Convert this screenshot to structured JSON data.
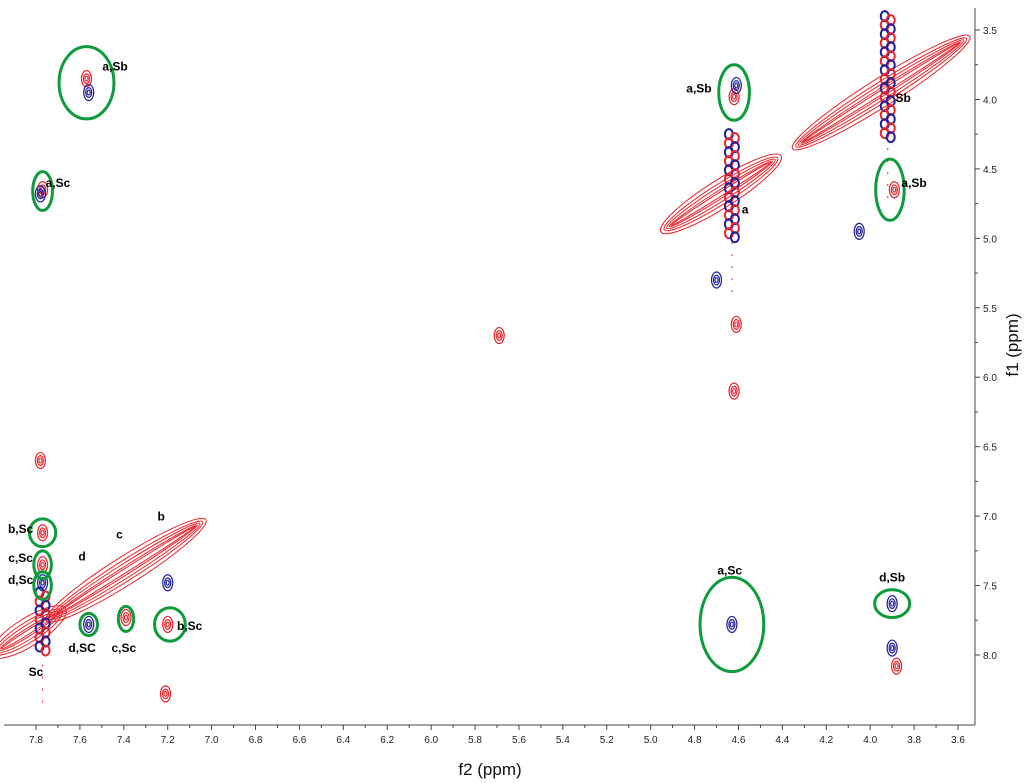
{
  "chart_data": {
    "type": "scatter",
    "title": "",
    "xlabel": "f2 (ppm)",
    "ylabel": "f1 (ppm)",
    "xlim": [
      7.95,
      3.58
    ],
    "ylim": [
      3.4,
      8.5
    ],
    "x_reversed": true,
    "y_reversed": true,
    "x_ticks": [
      "7.8",
      "7.6",
      "7.4",
      "7.2",
      "7.0",
      "6.8",
      "6.6",
      "6.4",
      "6.2",
      "6.0",
      "5.8",
      "5.6",
      "5.4",
      "5.2",
      "5.0",
      "4.8",
      "4.6",
      "4.4",
      "4.2",
      "4.0",
      "3.8",
      "3.6"
    ],
    "y_ticks": [
      "3.5",
      "4.0",
      "4.5",
      "5.0",
      "5.5",
      "6.0",
      "6.5",
      "7.0",
      "7.5",
      "8.0"
    ],
    "colors": {
      "positive": "#e8242c",
      "negative": "#1f1f9a",
      "highlight": "#0f9a3c"
    },
    "diagonal_segments": [
      {
        "x1": 7.95,
        "y1": 7.95,
        "x2": 7.72,
        "y2": 7.72
      },
      {
        "x1": 7.7,
        "y1": 7.7,
        "x2": 7.08,
        "y2": 7.08
      },
      {
        "x1": 4.9,
        "y1": 4.9,
        "x2": 4.46,
        "y2": 4.46
      },
      {
        "x1": 4.3,
        "y1": 4.3,
        "x2": 3.6,
        "y2": 3.6
      }
    ],
    "stripes": [
      {
        "x": 4.63,
        "y_from": 4.25,
        "y_to": 5.0
      },
      {
        "x": 3.92,
        "y_from": 3.4,
        "y_to": 4.3
      },
      {
        "x": 7.77,
        "y_from": 7.55,
        "y_to": 7.95
      }
    ],
    "cross_peaks": [
      {
        "x": 7.57,
        "y": 3.85,
        "sign": "pos"
      },
      {
        "x": 7.56,
        "y": 3.95,
        "sign": "neg"
      },
      {
        "x": 7.77,
        "y": 4.65,
        "sign": "pos"
      },
      {
        "x": 7.78,
        "y": 4.68,
        "sign": "neg"
      },
      {
        "x": 4.62,
        "y": 3.98,
        "sign": "pos"
      },
      {
        "x": 4.61,
        "y": 3.9,
        "sign": "neg"
      },
      {
        "x": 3.89,
        "y": 4.65,
        "sign": "pos"
      },
      {
        "x": 5.69,
        "y": 5.7,
        "sign": "pos"
      },
      {
        "x": 4.63,
        "y": 7.78,
        "sign": "neg"
      },
      {
        "x": 3.9,
        "y": 7.63,
        "sign": "neg"
      },
      {
        "x": 7.77,
        "y": 7.12,
        "sign": "pos"
      },
      {
        "x": 7.77,
        "y": 7.35,
        "sign": "pos"
      },
      {
        "x": 7.77,
        "y": 7.48,
        "sign": "neg"
      },
      {
        "x": 7.56,
        "y": 7.78,
        "sign": "neg"
      },
      {
        "x": 7.39,
        "y": 7.73,
        "sign": "pos"
      },
      {
        "x": 7.2,
        "y": 7.78,
        "sign": "pos"
      },
      {
        "x": 7.2,
        "y": 7.48,
        "sign": "neg"
      },
      {
        "x": 7.21,
        "y": 8.28,
        "sign": "pos"
      },
      {
        "x": 4.61,
        "y": 5.62,
        "sign": "pos"
      },
      {
        "x": 4.62,
        "y": 6.1,
        "sign": "pos"
      },
      {
        "x": 4.7,
        "y": 5.3,
        "sign": "neg"
      },
      {
        "x": 3.9,
        "y": 7.95,
        "sign": "neg"
      },
      {
        "x": 3.88,
        "y": 8.08,
        "sign": "pos"
      },
      {
        "x": 4.05,
        "y": 4.95,
        "sign": "neg"
      },
      {
        "x": 7.78,
        "y": 6.6,
        "sign": "pos"
      }
    ],
    "annotations": [
      {
        "text": "a,Sb",
        "x": 7.44,
        "y": 3.79,
        "circle": {
          "x": 7.57,
          "y": 3.88,
          "rx": 0.125,
          "ry": 0.26
        }
      },
      {
        "text": "a,Sc",
        "x": 7.7,
        "y": 4.63,
        "circle": {
          "x": 7.77,
          "y": 4.66,
          "rx": 0.045,
          "ry": 0.14
        }
      },
      {
        "text": "a,Sb",
        "x": 4.78,
        "y": 3.95,
        "circle": {
          "x": 4.62,
          "y": 3.95,
          "rx": 0.07,
          "ry": 0.2
        }
      },
      {
        "text": "Sb",
        "x": 3.85,
        "y": 4.02,
        "circle": null
      },
      {
        "text": "a",
        "x": 4.57,
        "y": 4.82,
        "circle": null
      },
      {
        "text": "a,Sb",
        "x": 3.8,
        "y": 4.63,
        "circle": {
          "x": 3.91,
          "y": 4.65,
          "rx": 0.065,
          "ry": 0.22
        }
      },
      {
        "text": "a,Sc",
        "x": 4.64,
        "y": 7.42,
        "circle": {
          "x": 4.63,
          "y": 7.78,
          "rx": 0.145,
          "ry": 0.34
        }
      },
      {
        "text": "d,Sb",
        "x": 3.9,
        "y": 7.47,
        "circle": {
          "x": 3.9,
          "y": 7.63,
          "rx": 0.08,
          "ry": 0.1
        }
      },
      {
        "text": "b,Sc",
        "x": 7.87,
        "y": 7.12,
        "circle": {
          "x": 7.77,
          "y": 7.12,
          "rx": 0.06,
          "ry": 0.1
        }
      },
      {
        "text": "c,Sc",
        "x": 7.87,
        "y": 7.33,
        "circle": {
          "x": 7.77,
          "y": 7.35,
          "rx": 0.04,
          "ry": 0.1
        }
      },
      {
        "text": "d,Sc",
        "x": 7.87,
        "y": 7.49,
        "circle": {
          "x": 7.77,
          "y": 7.5,
          "rx": 0.04,
          "ry": 0.1
        }
      },
      {
        "text": "d",
        "x": 7.59,
        "y": 7.32,
        "circle": null
      },
      {
        "text": "c",
        "x": 7.42,
        "y": 7.16,
        "circle": null
      },
      {
        "text": "b",
        "x": 7.23,
        "y": 7.03,
        "circle": null
      },
      {
        "text": "d,SC",
        "x": 7.59,
        "y": 7.98,
        "circle": {
          "x": 7.56,
          "y": 7.78,
          "rx": 0.04,
          "ry": 0.08
        }
      },
      {
        "text": "c,Sc",
        "x": 7.4,
        "y": 7.98,
        "circle": {
          "x": 7.39,
          "y": 7.74,
          "rx": 0.035,
          "ry": 0.09
        }
      },
      {
        "text": "b,Sc",
        "x": 7.1,
        "y": 7.82,
        "circle": {
          "x": 7.19,
          "y": 7.78,
          "rx": 0.07,
          "ry": 0.12
        }
      },
      {
        "text": "Sc",
        "x": 7.8,
        "y": 8.15,
        "circle": null
      }
    ]
  }
}
